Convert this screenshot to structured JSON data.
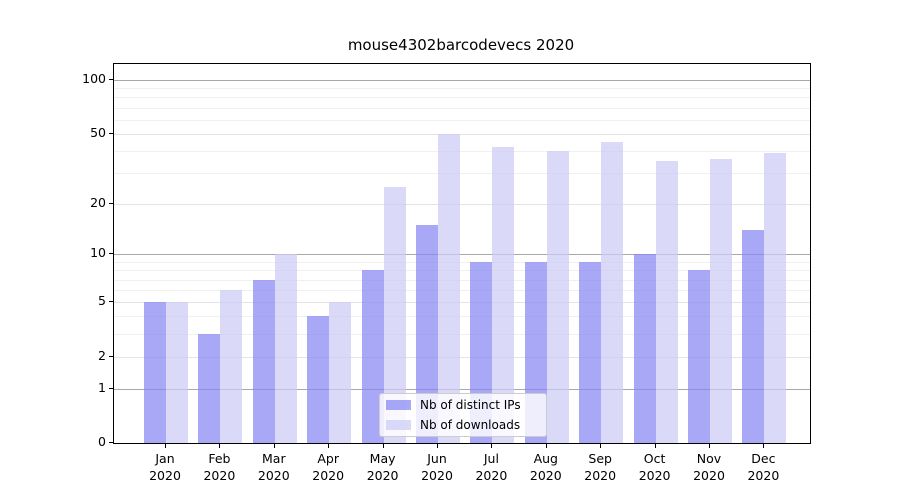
{
  "title": "mouse4302barcodevecs 2020",
  "chart_data": {
    "type": "bar",
    "title": "mouse4302barcodevecs 2020",
    "categories": [
      "Jan 2020",
      "Feb 2020",
      "Mar 2020",
      "Apr 2020",
      "May 2020",
      "Jun 2020",
      "Jul 2020",
      "Aug 2020",
      "Sep 2020",
      "Oct 2020",
      "Nov 2020",
      "Dec 2020"
    ],
    "series": [
      {
        "name": "Nb of distinct IPs",
        "color": "#8787f2",
        "opacity": 0.72,
        "values": [
          5,
          3,
          7,
          4,
          8,
          15,
          9,
          9,
          9,
          10,
          8,
          14
        ]
      },
      {
        "name": "Nb of downloads",
        "color": "#ccccf5",
        "opacity": 0.72,
        "values": [
          5,
          6,
          10,
          5,
          25,
          50,
          42,
          40,
          45,
          35,
          36,
          39
        ]
      }
    ],
    "xlabel": "",
    "ylabel": "",
    "yscale": "log1p",
    "ylim": [
      0,
      123
    ],
    "y_ticks": [
      0,
      1,
      2,
      5,
      10,
      20,
      50,
      100
    ],
    "y_minor_ticks": [
      3,
      4,
      6,
      7,
      8,
      9,
      30,
      40,
      60,
      70,
      80,
      90
    ],
    "grid": true,
    "legend_position": "lower center"
  },
  "grid_colors": {
    "major_pow10": "#a8a8a8",
    "major": "#e4e4e4",
    "minor": "#f0f0f0"
  },
  "axis_color": "#000000",
  "background_color": "#ffffff"
}
